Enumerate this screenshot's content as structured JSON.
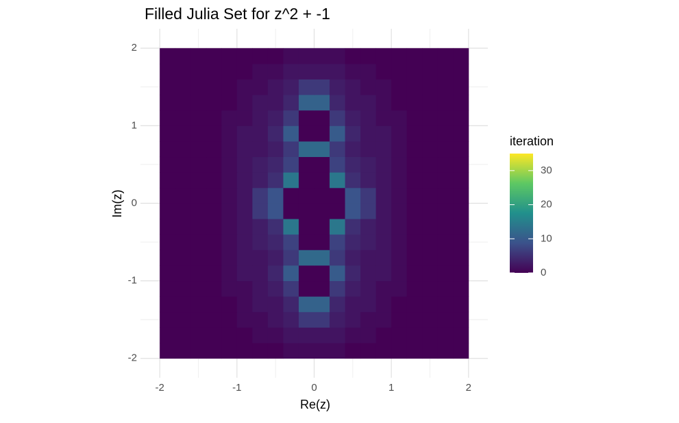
{
  "chart_data": {
    "type": "heatmap",
    "title": "Filled Julia Set for z^2 + -1",
    "x_label": "Re(z)",
    "y_label": "Im(z)",
    "colorbar_title": "iteration",
    "xlim": [
      -2.25,
      2.25
    ],
    "ylim": [
      -2.25,
      2.25
    ],
    "xticks": [
      -2,
      -1,
      0,
      1,
      2
    ],
    "yticks": [
      -2,
      -1,
      0,
      1,
      2
    ],
    "x_minor": [
      -1.5,
      -0.5,
      0.5,
      1.5
    ],
    "y_minor": [
      -1.5,
      -0.5,
      0.5,
      1.5
    ],
    "grid": true,
    "fill_lim": [
      0,
      35
    ],
    "fill_ticks": [
      0,
      10,
      20,
      30
    ],
    "colors": [
      "#440154",
      "#3b528b",
      "#21908c",
      "#5dc863",
      "#fde725"
    ],
    "x": [
      -1.9,
      -1.7,
      -1.5,
      -1.3,
      -1.1,
      -0.9,
      -0.7,
      -0.5,
      -0.3,
      -0.1,
      0.1,
      0.3,
      0.5,
      0.7,
      0.9,
      1.1,
      1.3,
      1.5,
      1.7,
      1.9
    ],
    "y": [
      -1.9,
      -1.7,
      -1.5,
      -1.3,
      -1.1,
      -0.9,
      -0.7,
      -0.5,
      -0.3,
      -0.1,
      0.1,
      0.3,
      0.5,
      0.7,
      0.9,
      1.1,
      1.3,
      1.5,
      1.7,
      1.9
    ],
    "values": [
      [
        0,
        0,
        0,
        0,
        0,
        0,
        0,
        0,
        1,
        1,
        1,
        1,
        0,
        0,
        0,
        0,
        0,
        0,
        0,
        0
      ],
      [
        0,
        0,
        0,
        0,
        0,
        0,
        1,
        1,
        2,
        2,
        2,
        2,
        1,
        1,
        0,
        0,
        0,
        0,
        0,
        0
      ],
      [
        0,
        0,
        0,
        0,
        0,
        1,
        1,
        2,
        3,
        6,
        6,
        3,
        2,
        1,
        1,
        0,
        0,
        0,
        0,
        0
      ],
      [
        0,
        0,
        0,
        0,
        0,
        1,
        2,
        2,
        4,
        11,
        11,
        4,
        2,
        2,
        1,
        0,
        0,
        0,
        0,
        0
      ],
      [
        0,
        0,
        0,
        0,
        1,
        1,
        2,
        3,
        6,
        0,
        0,
        6,
        3,
        2,
        1,
        1,
        0,
        0,
        0,
        0
      ],
      [
        0,
        0,
        0,
        0,
        1,
        2,
        2,
        4,
        10,
        0,
        0,
        10,
        4,
        2,
        2,
        1,
        0,
        0,
        0,
        0
      ],
      [
        0,
        0,
        0,
        0,
        1,
        2,
        2,
        3,
        6,
        12,
        12,
        6,
        3,
        2,
        2,
        1,
        0,
        0,
        0,
        0
      ],
      [
        0,
        0,
        0,
        0,
        1,
        2,
        3,
        4,
        7,
        0,
        0,
        7,
        4,
        3,
        2,
        1,
        0,
        0,
        0,
        0
      ],
      [
        0,
        0,
        0,
        0,
        1,
        2,
        3,
        5,
        14,
        0,
        0,
        14,
        5,
        3,
        2,
        1,
        0,
        0,
        0,
        0
      ],
      [
        0,
        0,
        0,
        0,
        1,
        2,
        6,
        9,
        0,
        0,
        0,
        0,
        9,
        6,
        2,
        1,
        0,
        0,
        0,
        0
      ],
      [
        0,
        0,
        0,
        0,
        1,
        2,
        6,
        9,
        0,
        0,
        0,
        0,
        9,
        6,
        2,
        1,
        0,
        0,
        0,
        0
      ],
      [
        0,
        0,
        0,
        0,
        1,
        2,
        3,
        5,
        14,
        0,
        0,
        14,
        5,
        3,
        2,
        1,
        0,
        0,
        0,
        0
      ],
      [
        0,
        0,
        0,
        0,
        1,
        2,
        3,
        4,
        7,
        0,
        0,
        7,
        4,
        3,
        2,
        1,
        0,
        0,
        0,
        0
      ],
      [
        0,
        0,
        0,
        0,
        1,
        2,
        2,
        3,
        6,
        12,
        12,
        6,
        3,
        2,
        2,
        1,
        0,
        0,
        0,
        0
      ],
      [
        0,
        0,
        0,
        0,
        1,
        2,
        2,
        4,
        10,
        0,
        0,
        10,
        4,
        2,
        2,
        1,
        0,
        0,
        0,
        0
      ],
      [
        0,
        0,
        0,
        0,
        1,
        1,
        2,
        3,
        6,
        0,
        0,
        6,
        3,
        2,
        1,
        1,
        0,
        0,
        0,
        0
      ],
      [
        0,
        0,
        0,
        0,
        0,
        1,
        2,
        2,
        4,
        11,
        11,
        4,
        2,
        2,
        1,
        0,
        0,
        0,
        0,
        0
      ],
      [
        0,
        0,
        0,
        0,
        0,
        1,
        1,
        2,
        3,
        6,
        6,
        3,
        2,
        1,
        1,
        0,
        0,
        0,
        0,
        0
      ],
      [
        0,
        0,
        0,
        0,
        0,
        0,
        1,
        1,
        2,
        2,
        2,
        2,
        1,
        1,
        0,
        0,
        0,
        0,
        0,
        0
      ],
      [
        0,
        0,
        0,
        0,
        0,
        0,
        0,
        0,
        1,
        1,
        1,
        1,
        0,
        0,
        0,
        0,
        0,
        0,
        0,
        0
      ]
    ]
  }
}
